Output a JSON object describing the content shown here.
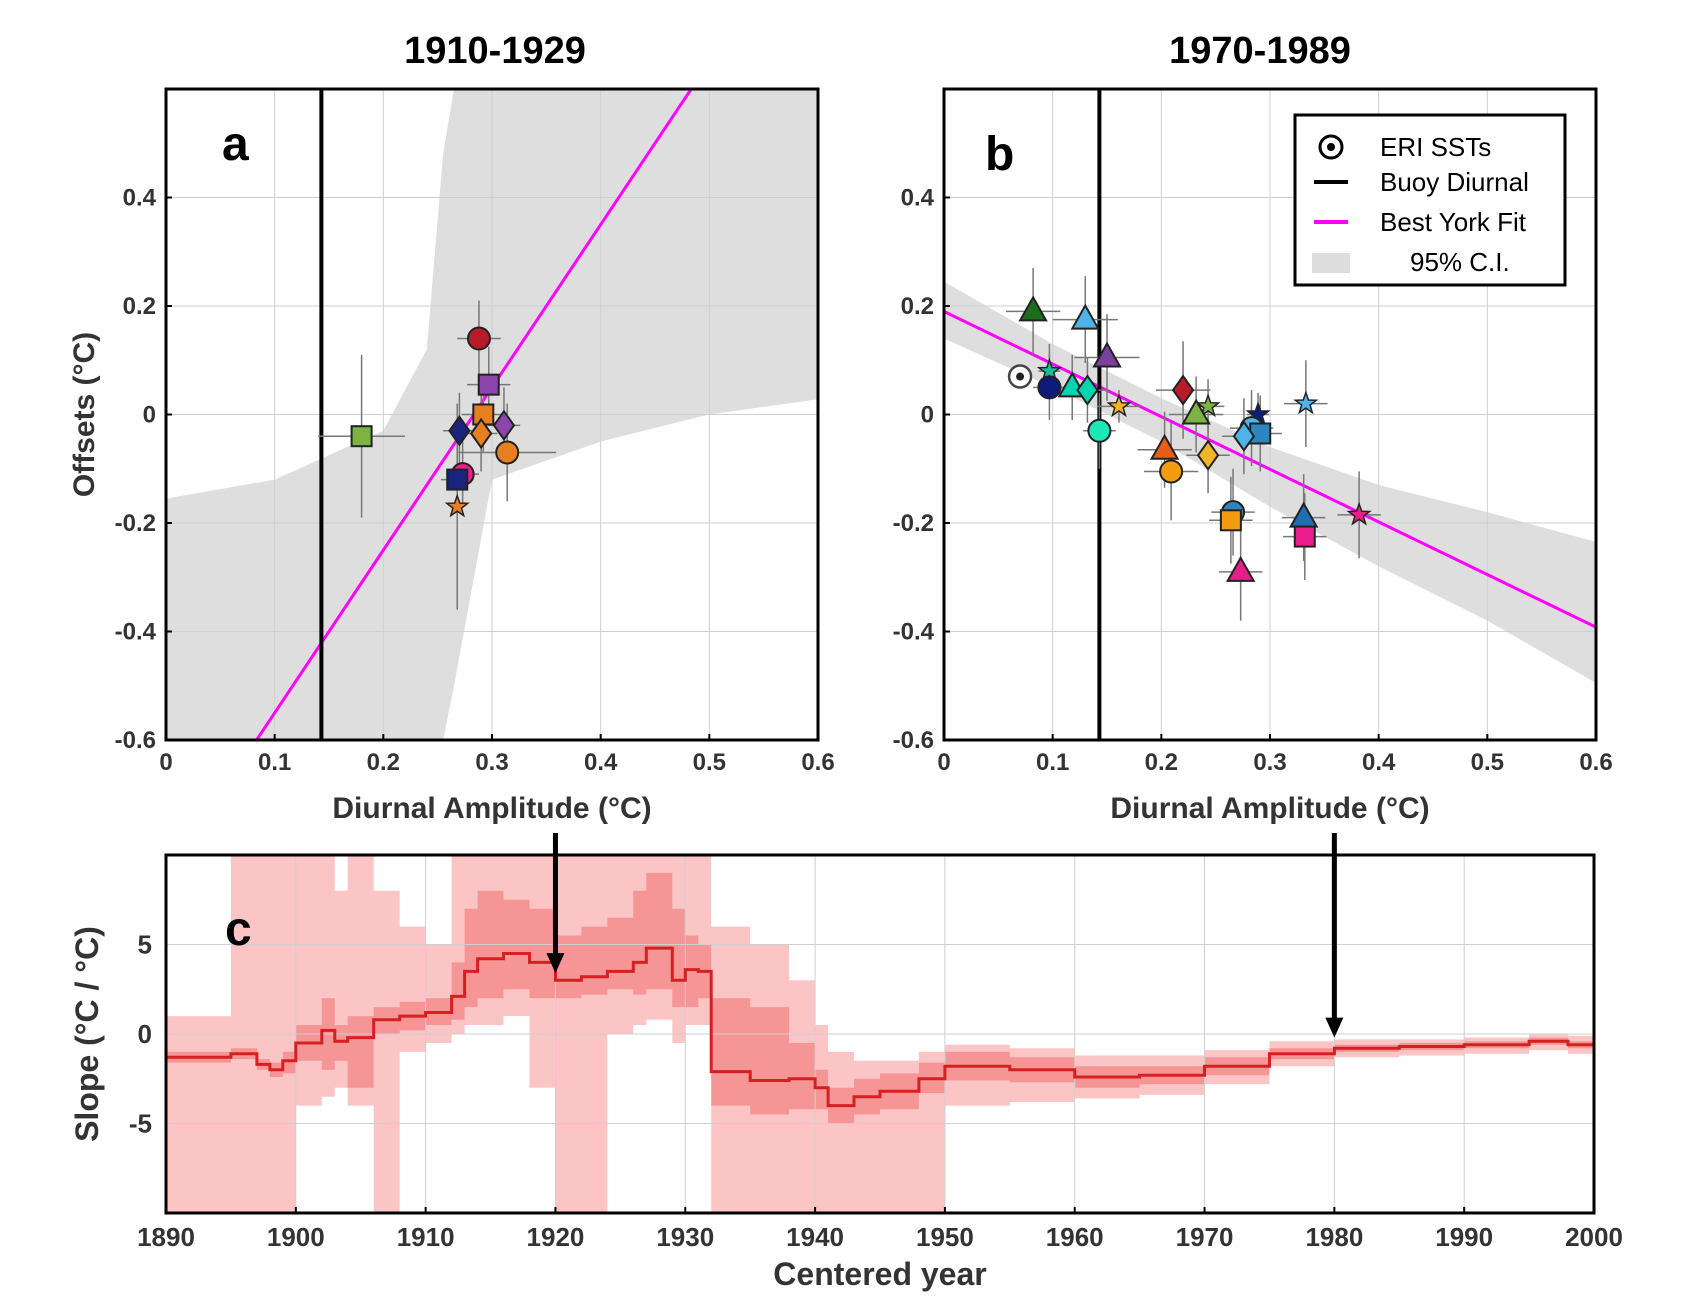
{
  "figure": {
    "panels": [
      {
        "title": "1910-1929",
        "letter": "a"
      },
      {
        "title": "1970-1989",
        "letter": "b"
      },
      {
        "letter": "c"
      }
    ]
  },
  "chart_data": [
    {
      "type": "scatter",
      "panel": "a",
      "title": "1910-1929",
      "xlabel": "Diurnal Amplitude (°C)",
      "ylabel": "Offsets (°C)",
      "xlim": [
        0,
        0.6
      ],
      "ylim": [
        -0.6,
        0.6
      ],
      "xticks": [
        "0",
        "0.1",
        "0.2",
        "0.3",
        "0.4",
        "0.5",
        "0.6"
      ],
      "yticks": [
        "-0.6",
        "-0.4",
        "-0.2",
        "0",
        "0.2",
        "0.4"
      ],
      "grid": true,
      "buoy_diurnal_x": 0.143,
      "fit_line": {
        "intercept": -0.85,
        "slope": 3.0
      },
      "ci_band": {
        "x": [
          0,
          0.1,
          0.2,
          0.24,
          0.255,
          0.265,
          0.3,
          0.4,
          0.5,
          0.6
        ],
        "upper": [
          -0.155,
          -0.12,
          -0.03,
          0.12,
          0.48,
          0.6,
          0.6,
          0.6,
          0.6,
          0.6
        ],
        "lower": [
          -0.6,
          -0.6,
          -0.6,
          -0.6,
          -0.6,
          -0.5,
          -0.12,
          -0.05,
          0.0,
          0.028
        ]
      },
      "points": [
        {
          "x": 0.18,
          "y": -0.04,
          "marker": "square",
          "color": "#7cb342",
          "xerr": 0.04,
          "yerr": 0.15
        },
        {
          "x": 0.288,
          "y": 0.14,
          "marker": "circle",
          "color": "#b71c2a",
          "xerr": 0.02,
          "yerr": 0.07
        },
        {
          "x": 0.297,
          "y": 0.055,
          "marker": "square",
          "color": "#8e44ad",
          "xerr": 0.02,
          "yerr": 0.07
        },
        {
          "x": 0.27,
          "y": -0.03,
          "marker": "diamond",
          "color": "#1a237e",
          "xerr": 0.015,
          "yerr": 0.07
        },
        {
          "x": 0.292,
          "y": 0.0,
          "marker": "square",
          "color": "#e67e22",
          "xerr": 0.02,
          "yerr": 0.07
        },
        {
          "x": 0.29,
          "y": -0.035,
          "marker": "diamond",
          "color": "#e67e22",
          "xerr": 0.015,
          "yerr": 0.07
        },
        {
          "x": 0.311,
          "y": -0.02,
          "marker": "diamond",
          "color": "#8e44ad",
          "xerr": 0.015,
          "yerr": 0.07
        },
        {
          "x": 0.314,
          "y": -0.07,
          "marker": "circle",
          "color": "#e67e22",
          "xerr": 0.045,
          "yerr": 0.09
        },
        {
          "x": 0.273,
          "y": -0.11,
          "marker": "circle",
          "color": "#e91e8c",
          "xerr": 0.015,
          "yerr": 0.06
        },
        {
          "x": 0.268,
          "y": -0.12,
          "marker": "square",
          "color": "#1a237e",
          "xerr": 0.015,
          "yerr": 0.06
        },
        {
          "x": 0.268,
          "y": -0.17,
          "marker": "star",
          "color": "#e67e22",
          "xerr": 0.0,
          "yerr": 0.19
        }
      ]
    },
    {
      "type": "scatter",
      "panel": "b",
      "title": "1970-1989",
      "xlabel": "Diurnal Amplitude (°C)",
      "xlim": [
        0,
        0.6
      ],
      "ylim": [
        -0.6,
        0.6
      ],
      "xticks": [
        "0",
        "0.1",
        "0.2",
        "0.3",
        "0.4",
        "0.5",
        "0.6"
      ],
      "yticks": [
        "-0.6",
        "-0.4",
        "-0.2",
        "0",
        "0.2",
        "0.4"
      ],
      "grid": true,
      "buoy_diurnal_x": 0.143,
      "fit_line": {
        "intercept": 0.19,
        "slope": -0.97
      },
      "ci_band": {
        "x": [
          0,
          0.1,
          0.2,
          0.3,
          0.4,
          0.5,
          0.6
        ],
        "upper": [
          0.245,
          0.13,
          0.03,
          -0.06,
          -0.13,
          -0.18,
          -0.235
        ],
        "lower": [
          0.14,
          0.05,
          -0.05,
          -0.17,
          -0.28,
          -0.38,
          -0.495
        ]
      },
      "legend": {
        "position": "top-right",
        "items": [
          {
            "label": "ERI SSTs",
            "kind": "target"
          },
          {
            "label": "Buoy Diurnal",
            "kind": "line",
            "color": "#000000"
          },
          {
            "label": "Best York Fit",
            "kind": "line",
            "color": "#ff00ff"
          },
          {
            "label": "95% C.I.",
            "kind": "patch",
            "color": "#dddddd"
          }
        ]
      },
      "eri_point": {
        "x": 0.07,
        "y": 0.07
      },
      "points": [
        {
          "x": 0.082,
          "y": 0.19,
          "marker": "triangle",
          "color": "#1b6e1b",
          "xerr": 0.025,
          "yerr": 0.08
        },
        {
          "x": 0.13,
          "y": 0.175,
          "marker": "triangle",
          "color": "#4fb3e8",
          "xerr": 0.03,
          "yerr": 0.08
        },
        {
          "x": 0.15,
          "y": 0.105,
          "marker": "triangle",
          "color": "#7b3fa0",
          "xerr": 0.03,
          "yerr": 0.08
        },
        {
          "x": 0.097,
          "y": 0.08,
          "marker": "star",
          "color": "#1abc9c",
          "xerr": 0.01,
          "yerr": 0.05
        },
        {
          "x": 0.097,
          "y": 0.05,
          "marker": "circle",
          "color": "#0d1b7a",
          "xerr": 0.015,
          "yerr": 0.06
        },
        {
          "x": 0.118,
          "y": 0.05,
          "marker": "triangle",
          "color": "#00d4b0",
          "xerr": 0.02,
          "yerr": 0.06
        },
        {
          "x": 0.132,
          "y": 0.045,
          "marker": "diamond",
          "color": "#00d4b0",
          "xerr": 0.02,
          "yerr": 0.06
        },
        {
          "x": 0.143,
          "y": -0.03,
          "marker": "circle",
          "color": "#1de9b6",
          "xerr": 0.015,
          "yerr": 0.07
        },
        {
          "x": 0.161,
          "y": 0.015,
          "marker": "star",
          "color": "#f0b429",
          "xerr": 0.02,
          "yerr": 0.03
        },
        {
          "x": 0.22,
          "y": 0.045,
          "marker": "diamond",
          "color": "#b71c2a",
          "xerr": 0.025,
          "yerr": 0.09
        },
        {
          "x": 0.243,
          "y": 0.015,
          "marker": "star",
          "color": "#7cb342",
          "xerr": 0.015,
          "yerr": 0.05
        },
        {
          "x": 0.232,
          "y": 0.0,
          "marker": "triangle",
          "color": "#7cb342",
          "xerr": 0.025,
          "yerr": 0.07
        },
        {
          "x": 0.203,
          "y": -0.065,
          "marker": "triangle",
          "color": "#e85d1a",
          "xerr": 0.025,
          "yerr": 0.07
        },
        {
          "x": 0.209,
          "y": -0.105,
          "marker": "circle",
          "color": "#f39c12",
          "xerr": 0.025,
          "yerr": 0.09
        },
        {
          "x": 0.243,
          "y": -0.075,
          "marker": "diamond",
          "color": "#f0b429",
          "xerr": 0.02,
          "yerr": 0.07
        },
        {
          "x": 0.289,
          "y": 0.0,
          "marker": "star",
          "color": "#0d1b7a",
          "xerr": 0.01,
          "yerr": 0.04
        },
        {
          "x": 0.283,
          "y": -0.025,
          "marker": "circle",
          "color": "#4fb3e8",
          "xerr": 0.02,
          "yerr": 0.07
        },
        {
          "x": 0.291,
          "y": -0.035,
          "marker": "square",
          "color": "#2e86c1",
          "xerr": 0.02,
          "yerr": 0.07
        },
        {
          "x": 0.276,
          "y": -0.04,
          "marker": "diamond",
          "color": "#4fb3e8",
          "xerr": 0.02,
          "yerr": 0.07
        },
        {
          "x": 0.333,
          "y": 0.02,
          "marker": "star",
          "color": "#4fb3e8",
          "xerr": 0.02,
          "yerr": 0.08
        },
        {
          "x": 0.266,
          "y": -0.18,
          "marker": "circle",
          "color": "#2e86c1",
          "xerr": 0.02,
          "yerr": 0.08
        },
        {
          "x": 0.264,
          "y": -0.195,
          "marker": "square",
          "color": "#f39c12",
          "xerr": 0.02,
          "yerr": 0.08
        },
        {
          "x": 0.331,
          "y": -0.19,
          "marker": "triangle",
          "color": "#1f6fb2",
          "xerr": 0.02,
          "yerr": 0.08
        },
        {
          "x": 0.332,
          "y": -0.225,
          "marker": "square",
          "color": "#e91e8c",
          "xerr": 0.02,
          "yerr": 0.08
        },
        {
          "x": 0.273,
          "y": -0.29,
          "marker": "triangle",
          "color": "#e91e8c",
          "xerr": 0.02,
          "yerr": 0.09
        },
        {
          "x": 0.382,
          "y": -0.185,
          "marker": "star",
          "color": "#e91e8c",
          "xerr": 0.02,
          "yerr": 0.08
        }
      ]
    },
    {
      "type": "line",
      "panel": "c",
      "xlabel": "Centered year",
      "ylabel": "Slope (°C / °C)",
      "xlim": [
        1890,
        2000
      ],
      "ylim": [
        -10,
        10
      ],
      "xticks": [
        "1890",
        "1900",
        "1910",
        "1920",
        "1930",
        "1940",
        "1950",
        "1960",
        "1970",
        "1980",
        "1990",
        "2000"
      ],
      "yticks": [
        "5",
        "0",
        "-5"
      ],
      "grid": true,
      "line_color": "#d62020",
      "arrows_at": [
        1920,
        1980
      ],
      "years": [
        1890,
        1895,
        1897,
        1898,
        1899,
        1900,
        1902,
        1903,
        1904,
        1906,
        1908,
        1910,
        1912,
        1913,
        1914,
        1916,
        1918,
        1920,
        1922,
        1924,
        1926,
        1927,
        1929,
        1930,
        1931,
        1932,
        1935,
        1938,
        1940,
        1941,
        1943,
        1945,
        1948,
        1950,
        1955,
        1960,
        1965,
        1970,
        1975,
        1980,
        1985,
        1990,
        1995,
        1998,
        2000
      ],
      "slope": [
        -1.3,
        -1.1,
        -1.7,
        -2.0,
        -1.5,
        -0.5,
        0.2,
        -0.4,
        -0.2,
        0.8,
        1.0,
        1.2,
        2.1,
        3.5,
        4.2,
        4.5,
        4.0,
        3.0,
        3.2,
        3.5,
        4.0,
        4.8,
        3.0,
        3.6,
        3.5,
        -2.1,
        -2.6,
        -2.5,
        -3.0,
        -4.0,
        -3.5,
        -3.2,
        -2.5,
        -1.8,
        -2.0,
        -2.4,
        -2.3,
        -1.8,
        -1.1,
        -0.8,
        -0.7,
        -0.6,
        -0.4,
        -0.6,
        -0.7
      ],
      "ci_inner_upper": [
        -1.0,
        -0.8,
        -1.4,
        -1.6,
        -1.0,
        0.5,
        2.0,
        0.5,
        1.0,
        1.5,
        1.8,
        2.0,
        4.0,
        7.0,
        8.0,
        7.5,
        7.0,
        5.5,
        6.0,
        6.5,
        8.0,
        9.0,
        7.0,
        5.5,
        5.0,
        2.0,
        1.5,
        -0.5,
        -2.0,
        -3.0,
        -2.5,
        -2.2,
        -1.6,
        -1.0,
        -1.3,
        -1.8,
        -1.8,
        -1.3,
        -0.8,
        -0.6,
        -0.5,
        -0.4,
        -0.2,
        -0.4,
        -0.5
      ],
      "ci_inner_lower": [
        -1.6,
        -1.4,
        -2.0,
        -2.4,
        -2.2,
        -1.5,
        -2.0,
        -1.5,
        -3.0,
        0.0,
        0.2,
        0.5,
        0.8,
        1.5,
        2.0,
        2.5,
        2.0,
        2.0,
        2.2,
        2.5,
        2.2,
        2.5,
        1.5,
        1.5,
        2.0,
        -4.0,
        -4.5,
        -4.2,
        -4.2,
        -5.0,
        -4.5,
        -4.2,
        -3.3,
        -2.6,
        -2.7,
        -3.0,
        -2.8,
        -2.3,
        -1.4,
        -1.0,
        -0.9,
        -0.8,
        -0.6,
        -0.8,
        -0.9
      ],
      "ci_outer_upper": [
        1.0,
        10.0,
        10.0,
        10.0,
        10.0,
        10.0,
        10.0,
        8.0,
        10.0,
        8.0,
        6.0,
        5.0,
        10.0,
        10.0,
        10.0,
        10.0,
        10.0,
        10.0,
        10.0,
        10.0,
        10.0,
        10.0,
        10.0,
        10.0,
        10.0,
        6.0,
        5.0,
        3.0,
        0.5,
        -1.0,
        -1.5,
        -1.5,
        -1.0,
        -0.6,
        -0.8,
        -1.2,
        -1.2,
        -0.9,
        -0.4,
        -0.3,
        -0.3,
        -0.2,
        0.0,
        -0.1,
        -0.3
      ],
      "ci_outer_lower": [
        -10.0,
        -10.0,
        -10.0,
        -10.0,
        -10.0,
        -4.0,
        -3.5,
        -3.0,
        -4.0,
        -10.0,
        -1.0,
        -0.5,
        0.0,
        0.5,
        0.5,
        1.0,
        -3.0,
        -10.0,
        -10.0,
        0.0,
        0.5,
        0.8,
        -0.5,
        0.5,
        0.5,
        -10.0,
        -10.0,
        -10.0,
        -10.0,
        -10.0,
        -10.0,
        -10.0,
        -10.0,
        -4.0,
        -3.8,
        -3.6,
        -3.4,
        -2.8,
        -1.8,
        -1.3,
        -1.2,
        -1.1,
        -0.9,
        -1.1,
        -1.1
      ]
    }
  ]
}
